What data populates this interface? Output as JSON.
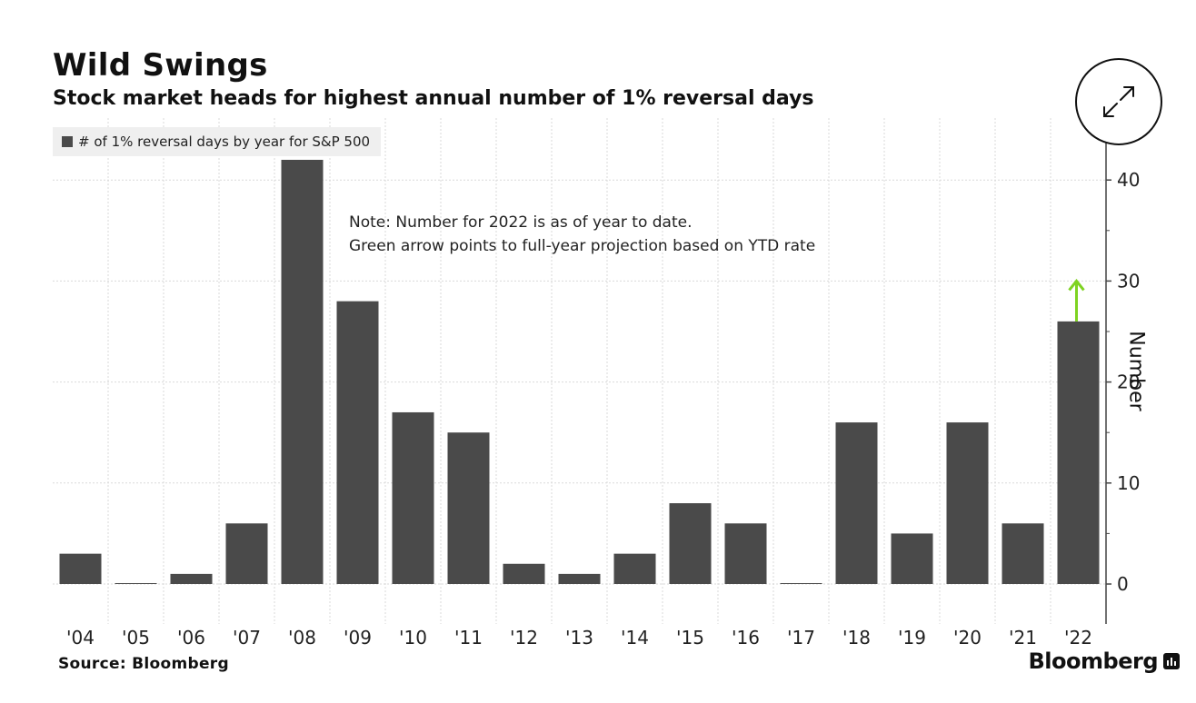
{
  "header": {
    "title": "Wild Swings",
    "subtitle": "Stock market heads for highest annual number of 1% reversal days"
  },
  "legend": {
    "label": "# of 1% reversal days by year for S&P 500"
  },
  "note": {
    "line1": "Note: Number for 2022 is as of year to date.",
    "line2": "Green arrow points to full-year projection based on YTD rate"
  },
  "footer": {
    "source": "Source: Bloomberg",
    "brand": "Bloomberg"
  },
  "colors": {
    "bar": "#4a4a4a",
    "arrow": "#7ed321",
    "grid": "#d9d9d9"
  },
  "chart_data": {
    "type": "bar",
    "title": "Wild Swings",
    "subtitle": "Stock market heads for highest annual number of 1% reversal days",
    "categories": [
      "'04",
      "'05",
      "'06",
      "'07",
      "'08",
      "'09",
      "'10",
      "'11",
      "'12",
      "'13",
      "'14",
      "'15",
      "'16",
      "'17",
      "'18",
      "'19",
      "'20",
      "'21",
      "'22"
    ],
    "series": [
      {
        "name": "# of 1% reversal days by year for S&P 500",
        "values": [
          3,
          0,
          1,
          6,
          42,
          28,
          17,
          15,
          2,
          1,
          3,
          8,
          6,
          0,
          16,
          5,
          16,
          6,
          26
        ]
      }
    ],
    "projection": {
      "category": "'22",
      "from": 26,
      "to": 30
    },
    "ylabel": "Number",
    "xlabel": "",
    "ylim": [
      -4,
      42
    ],
    "yticks": [
      0,
      10,
      20,
      30,
      40
    ],
    "grid": true,
    "legend_position": "top-left"
  }
}
